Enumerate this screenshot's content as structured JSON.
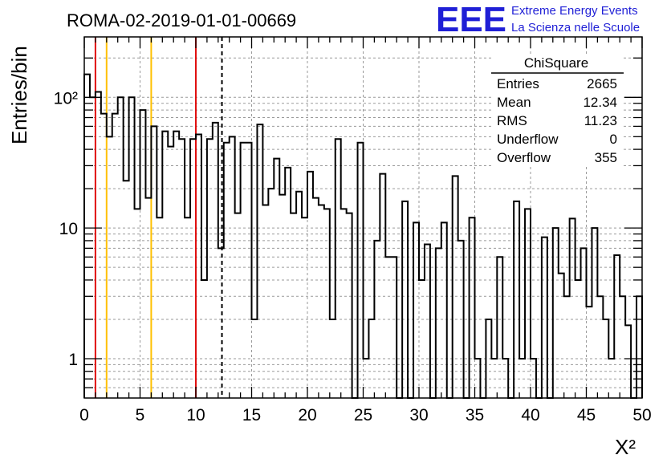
{
  "header": {
    "run_title": "ROMA-02-2019-01-01-00669",
    "logo_text": "EEE",
    "logo_line1": "Extreme Energy Events",
    "logo_line2": "La Scienza nelle Scuole"
  },
  "stats_box": {
    "title": "ChiSquare",
    "rows": [
      {
        "label": "Entries",
        "value": "2665"
      },
      {
        "label": "Mean",
        "value": "12.34"
      },
      {
        "label": "RMS",
        "value": "11.23"
      },
      {
        "label": "Underflow",
        "value": "0"
      },
      {
        "label": "Overflow",
        "value": "355"
      }
    ]
  },
  "chart_data": {
    "type": "histogram",
    "xlabel": "X²",
    "ylabel": "Entries/bin",
    "xlim": [
      0,
      50
    ],
    "ylim": [
      0.5,
      290
    ],
    "y_scale": "log",
    "grid": true,
    "bin_width": 0.5,
    "x_ticks": [
      0,
      5,
      10,
      15,
      20,
      25,
      30,
      35,
      40,
      45,
      50
    ],
    "x_tick_labels": [
      "0",
      "5",
      "10",
      "15",
      "20",
      "25",
      "30",
      "35",
      "40",
      "45",
      "50"
    ],
    "y_ticks": [
      1,
      10,
      100
    ],
    "y_tick_labels": [
      "1",
      "10",
      "10²"
    ],
    "values": [
      150,
      100,
      110,
      75,
      50,
      75,
      100,
      23,
      100,
      14,
      80,
      17,
      60,
      12,
      55,
      42,
      55,
      48,
      12,
      48,
      52,
      4,
      48,
      64,
      7,
      45,
      50,
      13,
      45,
      45,
      2,
      62,
      15,
      20,
      34,
      18,
      29,
      13,
      19,
      12,
      27,
      17,
      15,
      14,
      2,
      48,
      14,
      13,
      0.5,
      45,
      1,
      2,
      8,
      26,
      6,
      6,
      0.5,
      16,
      0.5,
      11,
      4,
      7.5,
      0.5,
      7,
      11,
      0.5,
      25,
      8,
      0.5,
      12,
      1,
      0.5,
      2,
      1,
      6,
      1,
      0.5,
      16,
      1,
      14,
      1,
      0.5,
      8.5,
      0.5,
      10,
      4.5,
      3,
      11.8,
      4,
      7,
      2.5,
      10,
      3,
      2,
      1,
      6.2,
      3,
      1.8,
      0.5,
      3
    ],
    "reference_lines": [
      {
        "x": 1,
        "color": "#e01010",
        "style": "solid"
      },
      {
        "x": 2,
        "color": "#ffc000",
        "style": "solid"
      },
      {
        "x": 6,
        "color": "#ffc000",
        "style": "solid"
      },
      {
        "x": 10,
        "color": "#e01010",
        "style": "solid"
      },
      {
        "x": 12.34,
        "color": "#000000",
        "style": "dashed"
      }
    ]
  }
}
